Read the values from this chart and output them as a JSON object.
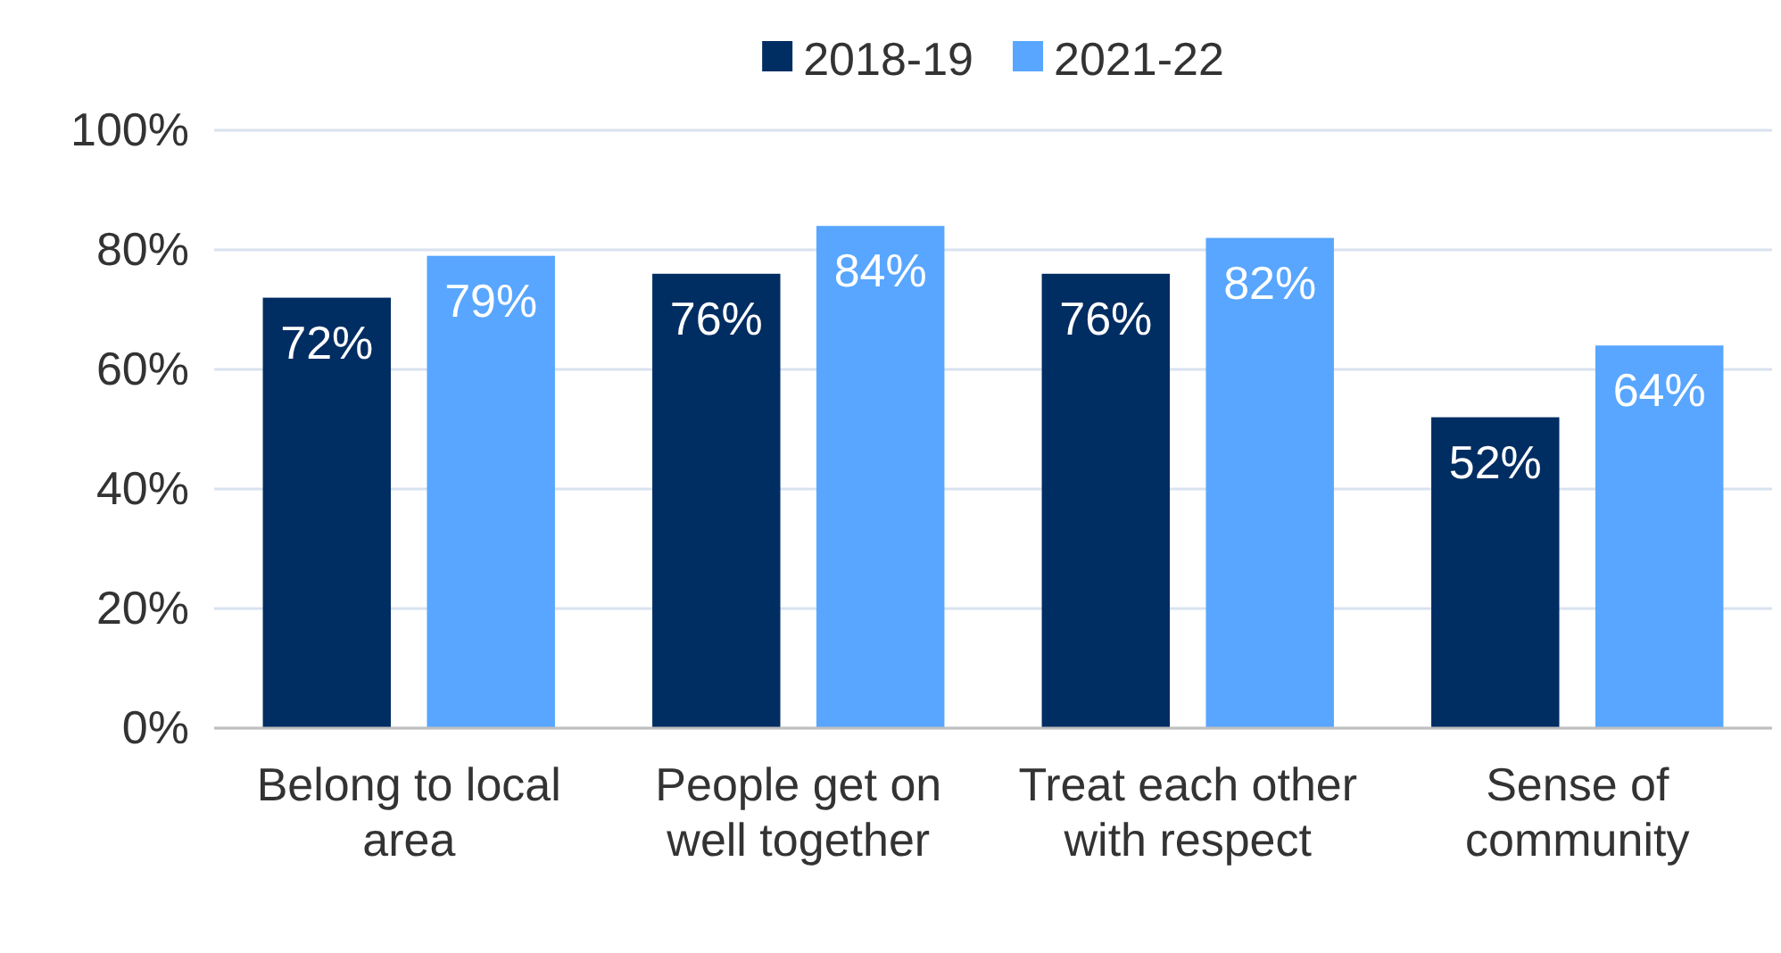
{
  "chart_data": {
    "type": "bar",
    "categories": [
      "Belong to local area",
      "People get on well together",
      "Treat each other with respect",
      "Sense of community"
    ],
    "series": [
      {
        "name": "2018-19",
        "color": "#002d62",
        "values": [
          72,
          76,
          76,
          52
        ]
      },
      {
        "name": "2021-22",
        "color": "#58a6ff",
        "values": [
          79,
          84,
          82,
          64
        ]
      }
    ],
    "ylim": [
      0,
      100
    ],
    "yticks": [
      {
        "value": 0,
        "label": "0%"
      },
      {
        "value": 20,
        "label": "20%"
      },
      {
        "value": 40,
        "label": "40%"
      },
      {
        "value": 60,
        "label": "60%"
      },
      {
        "value": 80,
        "label": "80%"
      },
      {
        "value": 100,
        "label": "100%"
      }
    ],
    "value_labels": [
      [
        "72%",
        "76%",
        "76%",
        "52%"
      ],
      [
        "79%",
        "84%",
        "82%",
        "64%"
      ]
    ],
    "grid": "y",
    "legend": "top"
  }
}
